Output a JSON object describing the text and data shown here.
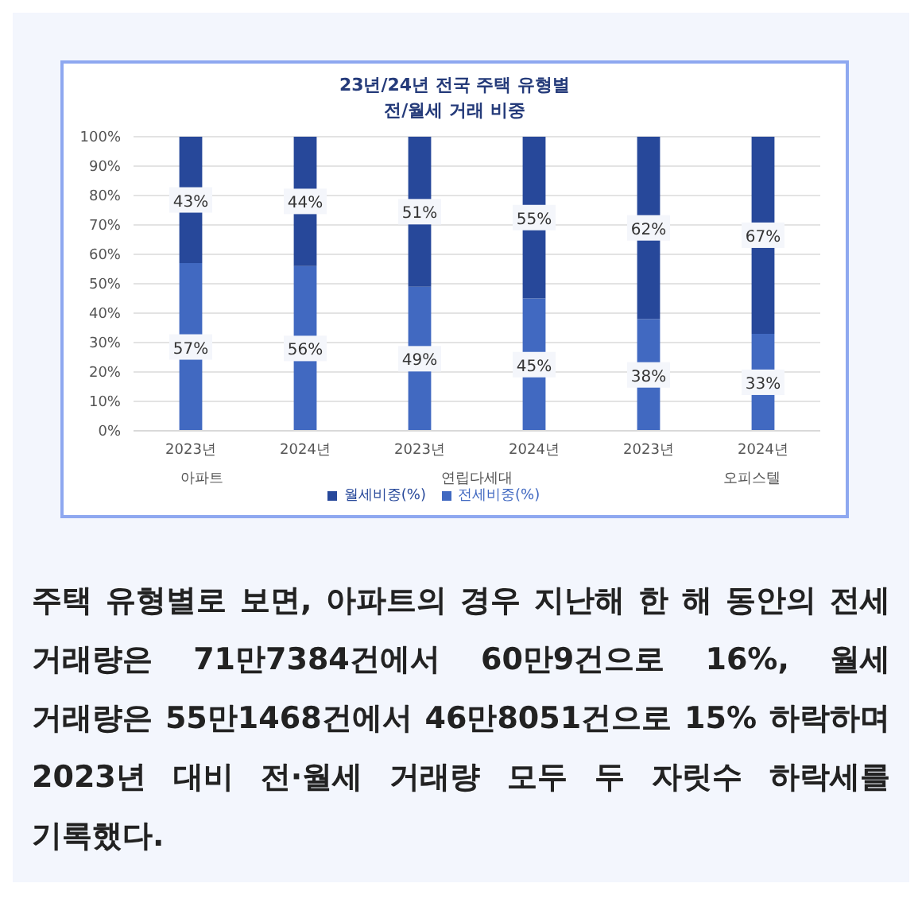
{
  "chart_data": {
    "type": "bar",
    "stacked": true,
    "title": "23년/24년 전국 주택 유형별\n전/월세 거래 비중",
    "categories": [
      "2023년",
      "2024년",
      "2023년",
      "2024년",
      "2023년",
      "2024년"
    ],
    "series": [
      {
        "name": "전세비중(%)",
        "color": "#4169c1",
        "values": [
          57,
          56,
          49,
          45,
          38,
          33
        ],
        "value_labels": [
          "57%",
          "56%",
          "49%",
          "45%",
          "38%",
          "33%"
        ]
      },
      {
        "name": "월세비중(%)",
        "color": "#27489a",
        "values": [
          43,
          44,
          51,
          55,
          62,
          67
        ],
        "value_labels": [
          "43%",
          "44%",
          "51%",
          "55%",
          "62%",
          "67%"
        ]
      }
    ],
    "ylim": [
      0,
      100
    ],
    "yticks": [
      {
        "value": 0,
        "label": "0%"
      },
      {
        "value": 10,
        "label": "10%"
      },
      {
        "value": 20,
        "label": "20%"
      },
      {
        "value": 30,
        "label": "30%"
      },
      {
        "value": 40,
        "label": "40%"
      },
      {
        "value": 50,
        "label": "50%"
      },
      {
        "value": 60,
        "label": "60%"
      },
      {
        "value": 70,
        "label": "70%"
      },
      {
        "value": 80,
        "label": "80%"
      },
      {
        "value": 90,
        "label": "90%"
      },
      {
        "value": 100,
        "label": "100%"
      }
    ],
    "grid": "y",
    "legend": "bottom",
    "annotations": [
      "아파트",
      "연립다세대",
      "오피스텔",
      "주택 유형별로 보면, 아파트의 경우 지난해 한 해 동안의 전세 거래량은 71만7384건에서 60만9건으로 16%, 월세 거래량은 55만1468건에서 46만8051건으로 15% 하락하며 2023년 대비 전·월세 거래량 모두 두 자릿수 하락세를 기록했다."
    ]
  }
}
